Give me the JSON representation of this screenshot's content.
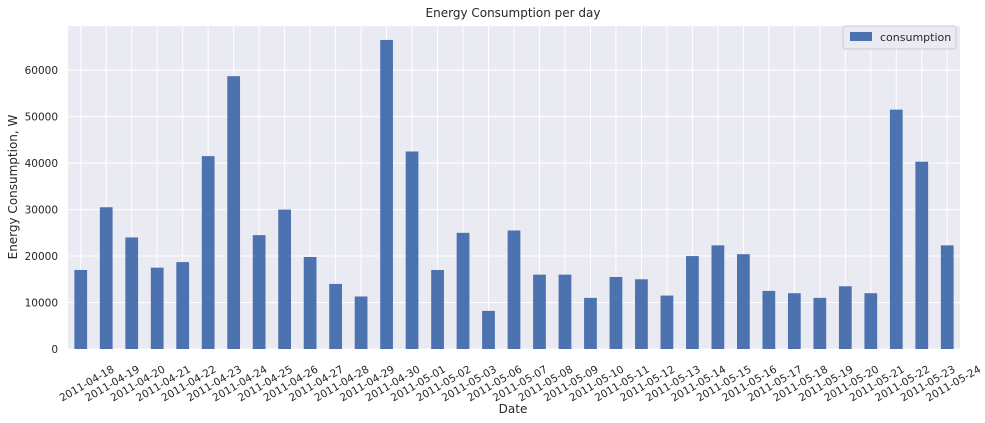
{
  "chart_data": {
    "type": "bar",
    "title": "Energy Consumption per day",
    "xlabel": "Date",
    "ylabel": "Energy Consumption, W",
    "ylim": [
      0,
      69500
    ],
    "yticks": [
      0,
      10000,
      20000,
      30000,
      40000,
      50000,
      60000
    ],
    "grid": true,
    "legend_position": "top-right",
    "colors": {
      "bar": "#4c72b0",
      "plot_bg": "#eaeaf2",
      "grid": "#ffffff"
    },
    "categories": [
      "2011-04-18",
      "2011-04-19",
      "2011-04-20",
      "2011-04-21",
      "2011-04-22",
      "2011-04-23",
      "2011-04-24",
      "2011-04-25",
      "2011-04-26",
      "2011-04-27",
      "2011-04-28",
      "2011-04-29",
      "2011-04-30",
      "2011-05-01",
      "2011-05-02",
      "2011-05-03",
      "2011-05-06",
      "2011-05-07",
      "2011-05-08",
      "2011-05-09",
      "2011-05-10",
      "2011-05-11",
      "2011-05-12",
      "2011-05-13",
      "2011-05-14",
      "2011-05-15",
      "2011-05-16",
      "2011-05-17",
      "2011-05-18",
      "2011-05-19",
      "2011-05-20",
      "2011-05-21",
      "2011-05-22",
      "2011-05-23",
      "2011-05-24"
    ],
    "series": [
      {
        "name": "consumption",
        "values": [
          17000,
          30500,
          24000,
          17500,
          18700,
          41500,
          58700,
          24500,
          30000,
          19800,
          14000,
          11300,
          66500,
          42500,
          17000,
          25000,
          8200,
          25500,
          16000,
          16000,
          11000,
          15500,
          15000,
          11500,
          20000,
          22300,
          20400,
          12500,
          12000,
          11000,
          13500,
          12000,
          51500,
          40300,
          22300
        ]
      }
    ]
  }
}
